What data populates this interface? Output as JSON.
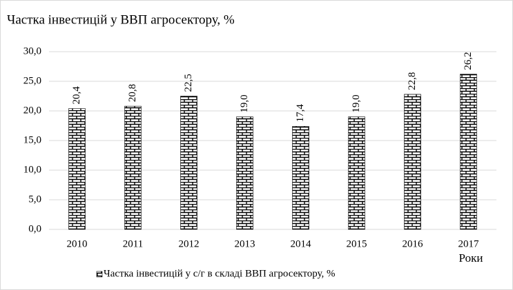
{
  "chart_data": {
    "type": "bar",
    "title": "Частка інвестицій у ВВП агросектору, %",
    "x_label": "Роки",
    "categories": [
      "2010",
      "2011",
      "2012",
      "2013",
      "2014",
      "2015",
      "2016",
      "2017"
    ],
    "series": [
      {
        "name": "Частка інвестицій у с/г в складі ВВП агросектору, %",
        "color": "#000000",
        "values": [
          20.4,
          20.8,
          22.5,
          19.0,
          17.4,
          19.0,
          22.8,
          26.2
        ],
        "value_labels": [
          "20,4",
          "20,8",
          "22,5",
          "19,0",
          "17,4",
          "19,0",
          "22,8",
          "26,2"
        ]
      }
    ],
    "ylim": [
      0,
      30
    ],
    "yticks": [
      {
        "value": 0,
        "label": "0,0"
      },
      {
        "value": 5,
        "label": "5,0"
      },
      {
        "value": 10,
        "label": "10,0"
      },
      {
        "value": 15,
        "label": "15,0"
      },
      {
        "value": 20,
        "label": "20,0"
      },
      {
        "value": 25,
        "label": "25,0"
      },
      {
        "value": 30,
        "label": "30,0"
      }
    ],
    "grid": true
  }
}
